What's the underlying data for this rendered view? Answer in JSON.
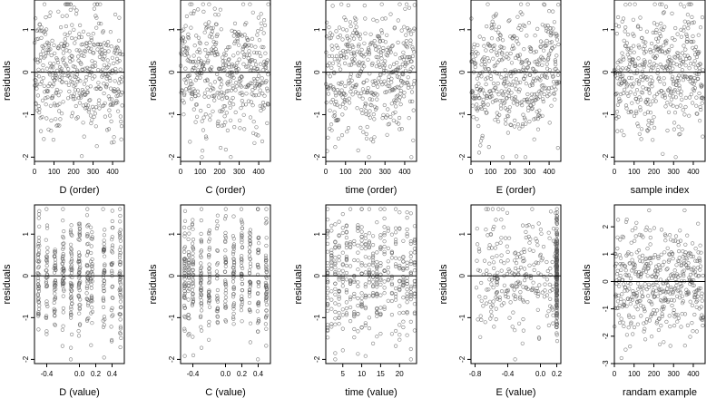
{
  "figure": {
    "background": "#ffffff",
    "point_color": "#555555",
    "line_color": "#000000"
  },
  "chart_data": [
    {
      "id": "p1",
      "type": "scatter",
      "xlabel": "D (order)",
      "ylabel": "residuals",
      "xlim": [
        0,
        460
      ],
      "ylim": [
        -2.1,
        1.7
      ],
      "xticks": [
        0,
        100,
        200,
        300,
        400
      ],
      "xtick_labels": [
        "0",
        "100",
        "200",
        "300",
        "400"
      ],
      "yticks": [
        -2,
        -1,
        0,
        1
      ],
      "ytick_labels": [
        "-2",
        "-1",
        "0",
        "1"
      ],
      "zero_line": 0,
      "grid": false,
      "legend": "none",
      "marker": "open-circle",
      "n_points": 450,
      "points": []
    },
    {
      "id": "p2",
      "type": "scatter",
      "xlabel": "C (order)",
      "ylabel": "residuals",
      "xlim": [
        0,
        460
      ],
      "ylim": [
        -2.1,
        1.7
      ],
      "xticks": [
        0,
        100,
        200,
        300,
        400
      ],
      "xtick_labels": [
        "0",
        "100",
        "200",
        "300",
        "400"
      ],
      "yticks": [
        -2,
        -1,
        0,
        1
      ],
      "ytick_labels": [
        "-2",
        "-1",
        "0",
        "1"
      ],
      "zero_line": 0,
      "grid": false,
      "legend": "none",
      "marker": "open-circle",
      "n_points": 450,
      "points": []
    },
    {
      "id": "p3",
      "type": "scatter",
      "xlabel": "time (order)",
      "ylabel": "residuals",
      "xlim": [
        0,
        460
      ],
      "ylim": [
        -2.1,
        1.7
      ],
      "xticks": [
        0,
        100,
        200,
        300,
        400
      ],
      "xtick_labels": [
        "0",
        "100",
        "200",
        "300",
        "400"
      ],
      "yticks": [
        -2,
        -1,
        0,
        1
      ],
      "ytick_labels": [
        "-2",
        "-1",
        "0",
        "1"
      ],
      "zero_line": 0,
      "grid": false,
      "legend": "none",
      "marker": "open-circle",
      "n_points": 450,
      "points": []
    },
    {
      "id": "p4",
      "type": "scatter",
      "xlabel": "E (order)",
      "ylabel": "residuals",
      "xlim": [
        0,
        460
      ],
      "ylim": [
        -2.1,
        1.7
      ],
      "xticks": [
        0,
        100,
        200,
        300,
        400
      ],
      "xtick_labels": [
        "0",
        "100",
        "200",
        "300",
        "400"
      ],
      "yticks": [
        -2,
        -1,
        0,
        1
      ],
      "ytick_labels": [
        "-2",
        "-1",
        "0",
        "1"
      ],
      "zero_line": 0,
      "grid": false,
      "legend": "none",
      "marker": "open-circle",
      "n_points": 450,
      "points": []
    },
    {
      "id": "p5",
      "type": "scatter",
      "xlabel": "sample index",
      "ylabel": "residuals",
      "xlim": [
        0,
        460
      ],
      "ylim": [
        -2.1,
        1.7
      ],
      "xticks": [
        0,
        100,
        200,
        300,
        400
      ],
      "xtick_labels": [
        "0",
        "100",
        "200",
        "300",
        "400"
      ],
      "yticks": [
        -2,
        -1,
        0,
        1
      ],
      "ytick_labels": [
        "-2",
        "-1",
        "0",
        "1"
      ],
      "zero_line": 0,
      "grid": false,
      "legend": "none",
      "marker": "open-circle",
      "n_points": 450,
      "points": []
    },
    {
      "id": "p6",
      "type": "scatter",
      "xlabel": "D (value)",
      "ylabel": "residuals",
      "xlim": [
        -0.55,
        0.55
      ],
      "ylim": [
        -2.1,
        1.7
      ],
      "xticks": [
        -0.4,
        0.0,
        0.2,
        0.4
      ],
      "xtick_labels": [
        "-0.4",
        "0.0",
        "0.2",
        "0.4"
      ],
      "yticks": [
        -2,
        -1,
        0,
        1
      ],
      "ytick_labels": [
        "-2",
        "-1",
        "0",
        "1"
      ],
      "zero_line": 0,
      "grid": false,
      "legend": "none",
      "marker": "open-circle",
      "n_points": 450,
      "points": []
    },
    {
      "id": "p7",
      "type": "scatter",
      "xlabel": "C (value)",
      "ylabel": "residuals",
      "xlim": [
        -0.55,
        0.55
      ],
      "ylim": [
        -2.1,
        1.7
      ],
      "xticks": [
        -0.4,
        0.0,
        0.2,
        0.4
      ],
      "xtick_labels": [
        "-0.4",
        "0.0",
        "0.2",
        "0.4"
      ],
      "yticks": [
        -2,
        -1,
        0,
        1
      ],
      "ytick_labels": [
        "-2",
        "-1",
        "0",
        "1"
      ],
      "zero_line": 0,
      "grid": false,
      "legend": "none",
      "marker": "open-circle",
      "n_points": 450,
      "points": []
    },
    {
      "id": "p8",
      "type": "scatter",
      "xlabel": "time (value)",
      "ylabel": "residuals",
      "xlim": [
        0.5,
        24.5
      ],
      "ylim": [
        -2.1,
        1.7
      ],
      "xticks": [
        5,
        10,
        15,
        20
      ],
      "xtick_labels": [
        "5",
        "10",
        "15",
        "20"
      ],
      "yticks": [
        -2,
        -1,
        0,
        1
      ],
      "ytick_labels": [
        "-2",
        "-1",
        "0",
        "1"
      ],
      "zero_line": 0,
      "grid": false,
      "legend": "none",
      "marker": "open-circle",
      "n_points": 450,
      "points": []
    },
    {
      "id": "p9",
      "type": "scatter",
      "xlabel": "E (value)",
      "ylabel": "residuals",
      "xlim": [
        -0.85,
        0.25
      ],
      "ylim": [
        -2.1,
        1.7
      ],
      "xticks": [
        -0.8,
        -0.4,
        0.0,
        0.2
      ],
      "xtick_labels": [
        "-0.8",
        "-0.4",
        "0.0",
        "0.2"
      ],
      "yticks": [
        -2,
        -1,
        0,
        1
      ],
      "ytick_labels": [
        "-2",
        "-1",
        "0",
        "1"
      ],
      "zero_line": 0,
      "grid": false,
      "legend": "none",
      "marker": "open-circle",
      "n_points": 450,
      "points": []
    },
    {
      "id": "p10",
      "type": "scatter",
      "xlabel": "randam example",
      "ylabel": "residuals",
      "xlim": [
        0,
        460
      ],
      "ylim": [
        -3.0,
        2.8
      ],
      "xticks": [
        0,
        100,
        200,
        300,
        400
      ],
      "xtick_labels": [
        "0",
        "100",
        "200",
        "300",
        "400"
      ],
      "yticks": [
        -3,
        -2,
        -1,
        0,
        1,
        2
      ],
      "ytick_labels": [
        "-3",
        "-2",
        "-1",
        "0",
        "1",
        "2"
      ],
      "zero_line": 0,
      "grid": false,
      "legend": "none",
      "marker": "open-circle",
      "n_points": 450,
      "points": []
    }
  ]
}
